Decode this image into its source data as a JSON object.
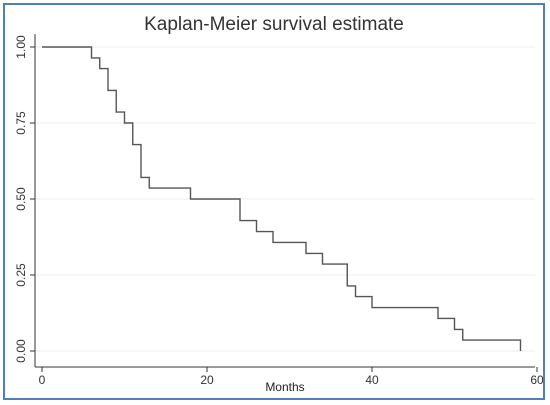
{
  "chart_data": {
    "type": "line",
    "title": "Kaplan-Meier survival estimate",
    "xlabel": "Months",
    "ylabel": "",
    "xlim": [
      0,
      60
    ],
    "ylim": [
      0,
      1
    ],
    "xticks": [
      0,
      20,
      40,
      60
    ],
    "yticks": [
      0,
      0.25,
      0.5,
      0.75,
      1
    ],
    "ytick_labels": [
      "0.00",
      "0.25",
      "0.50",
      "0.75",
      "1.00"
    ],
    "grid": true,
    "step": true,
    "series": [
      {
        "x": [
          0,
          6,
          7,
          8,
          9,
          10,
          11,
          12,
          13,
          18,
          24,
          26,
          28,
          32,
          34,
          37,
          38,
          40,
          48,
          50,
          51,
          58,
          58
        ],
        "values": [
          1.0,
          0.964,
          0.929,
          0.857,
          0.786,
          0.75,
          0.679,
          0.571,
          0.536,
          0.5,
          0.429,
          0.393,
          0.357,
          0.321,
          0.286,
          0.214,
          0.179,
          0.143,
          0.107,
          0.071,
          0.036,
          0.036,
          0.0
        ]
      }
    ],
    "colors": {
      "line": "#555555",
      "grid": "#ececec",
      "axis": "#333333",
      "frame": "#4f7fb8"
    }
  }
}
